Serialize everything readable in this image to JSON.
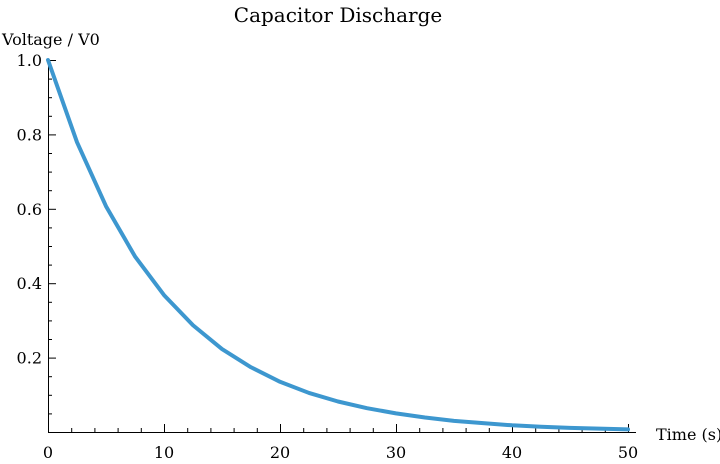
{
  "chart_data": {
    "type": "line",
    "title": "Capacitor Discharge",
    "xlabel": "Time (s)",
    "ylabel": "Voltage / V0",
    "xlim": [
      0,
      50
    ],
    "ylim": [
      0,
      1.0
    ],
    "x_ticks": [
      0,
      10,
      20,
      30,
      40,
      50
    ],
    "x_tick_labels": [
      "0",
      "10",
      "20",
      "30",
      "40",
      "50"
    ],
    "y_ticks": [
      0.2,
      0.4,
      0.6,
      0.8,
      1.0
    ],
    "y_tick_labels": [
      "0.2",
      "0.4",
      "0.6",
      "0.8",
      "1.0"
    ],
    "grid": false,
    "legend": "none",
    "series": [
      {
        "color": "#3d97cf",
        "x": [
          0,
          2.5,
          5,
          7.5,
          10,
          12.5,
          15,
          17.5,
          20,
          22.5,
          25,
          27.5,
          30,
          32.5,
          35,
          37.5,
          40,
          42.5,
          45,
          47.5,
          50
        ],
        "y": [
          1.0,
          0.779,
          0.607,
          0.472,
          0.368,
          0.287,
          0.223,
          0.174,
          0.135,
          0.105,
          0.082,
          0.064,
          0.05,
          0.039,
          0.03,
          0.024,
          0.018,
          0.014,
          0.011,
          0.009,
          0.007
        ]
      }
    ]
  }
}
